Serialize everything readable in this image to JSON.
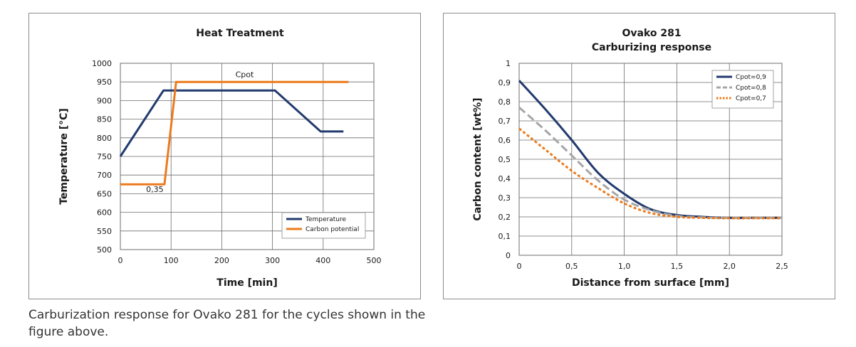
{
  "caption": "Carburization response for Ovako 281 for the cycles shown in the figure above.",
  "colors": {
    "navy": "#223a6e",
    "orange": "#ec7a1c",
    "gray": "#a6a6a6",
    "grid": "#6e6e6e"
  },
  "chart_data": [
    {
      "type": "line",
      "title": "Heat Treatment",
      "xlabel": "Time [min]",
      "ylabel": "Temperature [°C]",
      "xlim": [
        0,
        500
      ],
      "ylim": [
        500,
        1000
      ],
      "xticks": [
        0,
        100,
        200,
        300,
        400,
        500
      ],
      "yticks": [
        500,
        550,
        600,
        650,
        700,
        750,
        800,
        850,
        900,
        950,
        1000
      ],
      "grid": true,
      "legend_position": "bottom-right",
      "series": [
        {
          "name": "Temperature",
          "color": "#223a6e",
          "style": "solid",
          "x": [
            0,
            85,
            305,
            395,
            440
          ],
          "y": [
            750,
            927,
            927,
            817,
            817
          ]
        },
        {
          "name": "Carbon potential",
          "color": "#ec7a1c",
          "style": "solid",
          "x": [
            0,
            87,
            110,
            450
          ],
          "y": [
            675,
            675,
            950,
            950
          ]
        }
      ],
      "annotations": [
        {
          "text": "Cpot",
          "x": 245,
          "y": 963
        },
        {
          "text": "0,35",
          "x": 68,
          "y": 655
        }
      ]
    },
    {
      "type": "line",
      "title": [
        "Ovako 281",
        "Carburizing response"
      ],
      "xlabel": "Distance from surface [mm]",
      "ylabel": "Carbon content [wt%]",
      "xlim": [
        0,
        2.5
      ],
      "ylim": [
        0,
        1
      ],
      "xticks": [
        0,
        0.5,
        1.0,
        1.5,
        2.0,
        2.5
      ],
      "xtick_labels": [
        "0",
        "0,5",
        "1,0",
        "1,5",
        "2,0",
        "2,5"
      ],
      "yticks": [
        0,
        0.1,
        0.2,
        0.3,
        0.4,
        0.5,
        0.6,
        0.7,
        0.8,
        0.9,
        1
      ],
      "ytick_labels": [
        "0",
        "0,1",
        "0,2",
        "0,3",
        "0,4",
        "0,5",
        "0,6",
        "0,7",
        "0,8",
        "0,9",
        "1"
      ],
      "grid": true,
      "legend_position": "top-right",
      "series": [
        {
          "name": "Cpot=0,9",
          "color": "#223a6e",
          "style": "solid",
          "x": [
            0,
            0.25,
            0.5,
            0.75,
            1.0,
            1.25,
            1.5,
            1.75,
            2.0,
            2.25,
            2.5
          ],
          "y": [
            0.91,
            0.76,
            0.6,
            0.43,
            0.32,
            0.24,
            0.21,
            0.2,
            0.195,
            0.195,
            0.195
          ]
        },
        {
          "name": "Cpot=0,8",
          "color": "#a6a6a6",
          "style": "dashed",
          "x": [
            0,
            0.25,
            0.5,
            0.75,
            1.0,
            1.25,
            1.5,
            1.75,
            2.0,
            2.25,
            2.5
          ],
          "y": [
            0.77,
            0.65,
            0.52,
            0.39,
            0.29,
            0.235,
            0.205,
            0.197,
            0.195,
            0.195,
            0.195
          ]
        },
        {
          "name": "Cpot=0,7",
          "color": "#ec7a1c",
          "style": "dotted",
          "x": [
            0,
            0.25,
            0.5,
            0.75,
            1.0,
            1.25,
            1.5,
            1.75,
            2.0,
            2.25,
            2.5
          ],
          "y": [
            0.66,
            0.55,
            0.44,
            0.35,
            0.27,
            0.22,
            0.2,
            0.195,
            0.193,
            0.193,
            0.193
          ]
        }
      ]
    }
  ]
}
